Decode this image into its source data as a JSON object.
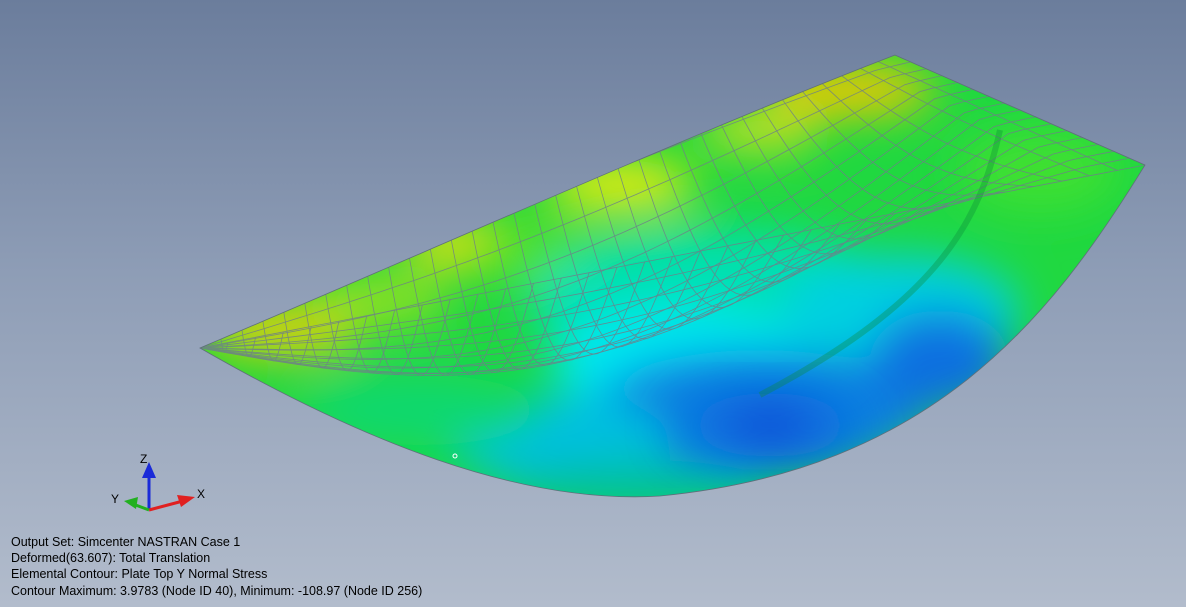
{
  "viewport": {
    "background_top": "#6b7d9c",
    "background_bottom": "#b2bccc",
    "mesh_line_color": "#6e7f8a"
  },
  "triad": {
    "x_label": "X",
    "y_label": "Y",
    "z_label": "Z",
    "x_color": "#e02020",
    "y_color": "#22b020",
    "z_color": "#1a2ad8"
  },
  "info": {
    "output_set": "Output Set: Simcenter NASTRAN Case 1",
    "deformed": "Deformed(63.607): Total Translation",
    "contour": "Elemental Contour: Plate Top Y Normal Stress",
    "range": "Contour Maximum: 3.9783 (Node ID 40), Minimum: -108.97 (Node ID 256)"
  },
  "contour_colors": [
    "#0a2fd0",
    "#0a6fe0",
    "#00c8f0",
    "#00f0d0",
    "#00e070",
    "#2de020",
    "#80e020",
    "#d0e010",
    "#f0c000"
  ]
}
